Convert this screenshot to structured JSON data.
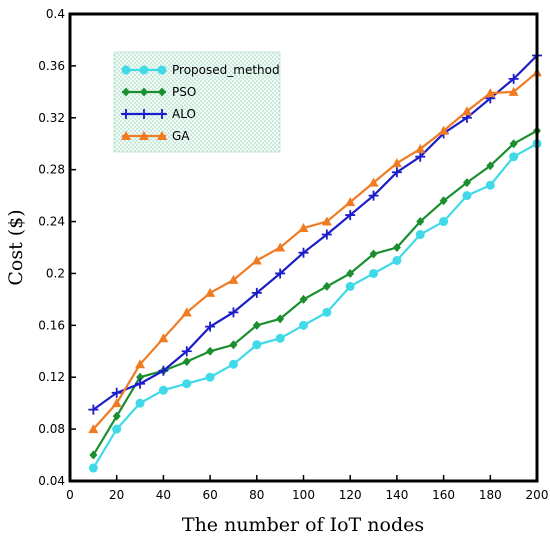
{
  "chart_data": {
    "type": "line",
    "xlabel": "The number of IoT nodes",
    "ylabel": "Cost ($)",
    "xlim": [
      0,
      200
    ],
    "ylim": [
      0.04,
      0.4
    ],
    "xticks": [
      "0",
      "20",
      "40",
      "60",
      "80",
      "100",
      "120",
      "140",
      "160",
      "180",
      "200"
    ],
    "yticks": [
      "0.04",
      "0.08",
      "0.12",
      "0.16",
      "0.2",
      "0.24",
      "0.28",
      "0.32",
      "0.36",
      "0.4"
    ],
    "grid": false,
    "legend_position": "top-left",
    "x": [
      10,
      20,
      30,
      40,
      50,
      60,
      70,
      80,
      90,
      100,
      110,
      120,
      130,
      140,
      150,
      160,
      170,
      180,
      190,
      200
    ],
    "series": [
      {
        "name": "Proposed_method",
        "color": "#3fd9e8",
        "marker": "circle",
        "values": [
          0.05,
          0.08,
          0.1,
          0.11,
          0.115,
          0.12,
          0.13,
          0.145,
          0.15,
          0.16,
          0.17,
          0.19,
          0.2,
          0.21,
          0.23,
          0.24,
          0.26,
          0.268,
          0.29,
          0.3
        ]
      },
      {
        "name": "PSO",
        "color": "#1a8f2e",
        "marker": "diamond",
        "values": [
          0.06,
          0.09,
          0.12,
          0.125,
          0.132,
          0.14,
          0.145,
          0.16,
          0.165,
          0.18,
          0.19,
          0.2,
          0.215,
          0.22,
          0.24,
          0.256,
          0.27,
          0.283,
          0.3,
          0.31
        ]
      },
      {
        "name": "ALO",
        "color": "#1c1cc8",
        "marker": "plus",
        "values": [
          0.095,
          0.108,
          0.115,
          0.125,
          0.14,
          0.159,
          0.17,
          0.185,
          0.2,
          0.216,
          0.23,
          0.245,
          0.26,
          0.278,
          0.29,
          0.308,
          0.32,
          0.335,
          0.35,
          0.368
        ]
      },
      {
        "name": "GA",
        "color": "#f07b22",
        "marker": "triangle",
        "values": [
          0.08,
          0.1,
          0.13,
          0.15,
          0.17,
          0.185,
          0.195,
          0.21,
          0.22,
          0.235,
          0.24,
          0.255,
          0.27,
          0.285,
          0.296,
          0.31,
          0.325,
          0.339,
          0.34,
          0.355
        ]
      }
    ]
  }
}
